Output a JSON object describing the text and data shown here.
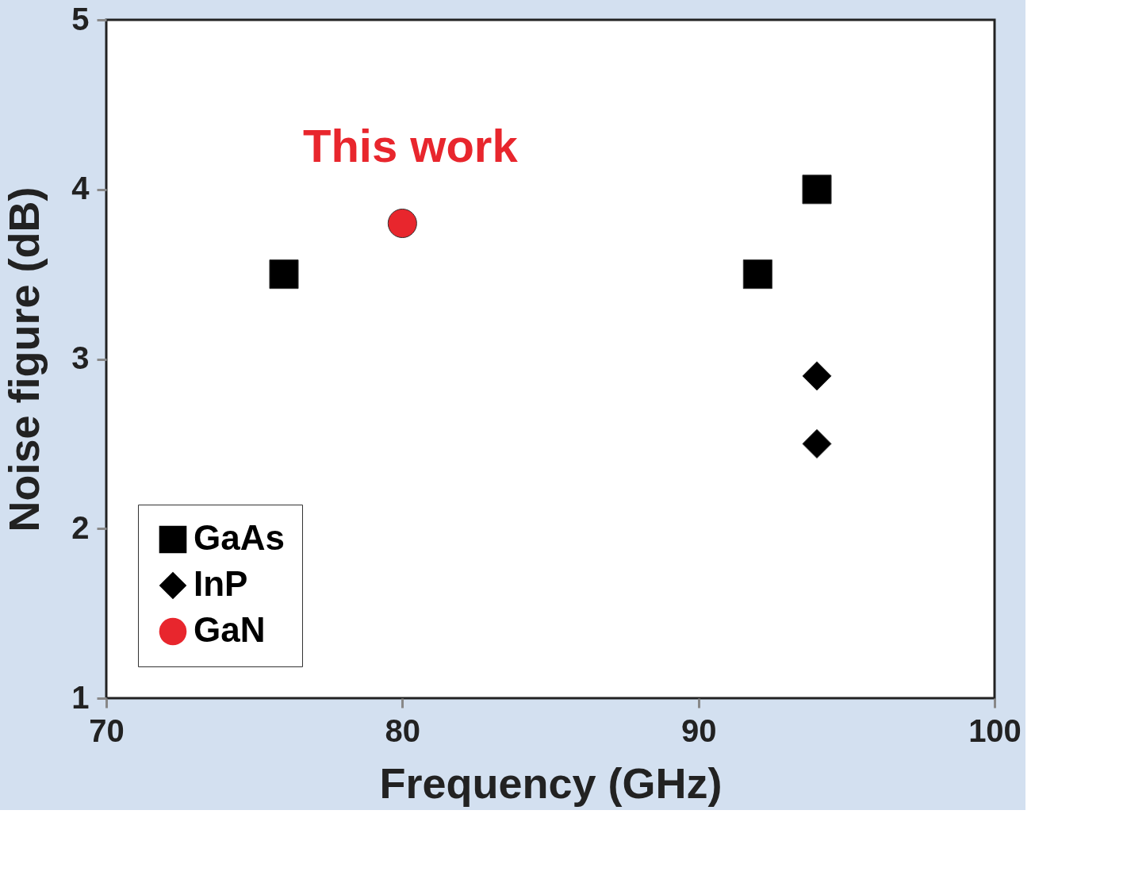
{
  "chart_data": {
    "type": "scatter",
    "xlabel": "Frequency (GHz)",
    "ylabel": "Noise figure (dB)",
    "xlim": [
      70,
      100
    ],
    "xticks": [
      70,
      80,
      90,
      100
    ],
    "ylim": [
      1,
      5
    ],
    "yticks": [
      1,
      2,
      3,
      4,
      5
    ],
    "grid": false,
    "legend": "bottom left",
    "annotations": [
      {
        "text": "This work",
        "x": 80,
        "y": 3.8
      }
    ],
    "series": [
      {
        "name": "GaAs",
        "color": "#000000",
        "marker": "square",
        "x": [
          76,
          92,
          94
        ],
        "values": [
          3.5,
          3.5,
          4.0
        ]
      },
      {
        "name": "InP",
        "color": "#000000",
        "marker": "diamond",
        "x": [
          94,
          94
        ],
        "values": [
          2.9,
          2.5
        ]
      },
      {
        "name": "GaN",
        "color": "#e8262d",
        "marker": "circle",
        "x": [
          80
        ],
        "values": [
          3.8
        ]
      }
    ]
  }
}
